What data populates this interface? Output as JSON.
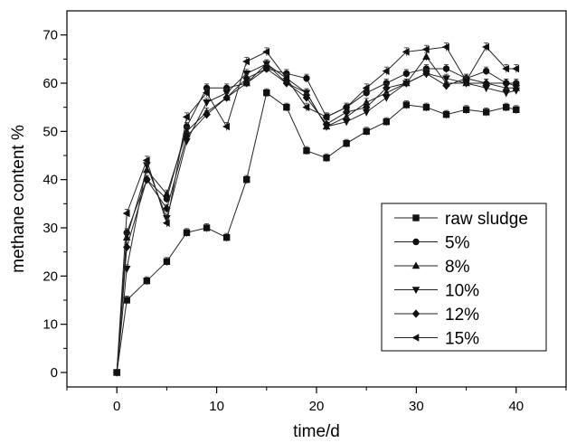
{
  "chart_data": {
    "type": "line",
    "title": "",
    "xlabel": "time/d",
    "ylabel": "methane content %",
    "xlim": [
      -5,
      45
    ],
    "ylim": [
      -3,
      75
    ],
    "xticks": [
      0,
      10,
      20,
      30,
      40
    ],
    "yticks": [
      0,
      10,
      20,
      30,
      40,
      50,
      60,
      70
    ],
    "grid": false,
    "legend_position": "right",
    "x": [
      0,
      1,
      3,
      5,
      7,
      9,
      11,
      13,
      15,
      17,
      19,
      21,
      23,
      25,
      27,
      29,
      31,
      33,
      35,
      37,
      39,
      40
    ],
    "series": [
      {
        "name": "raw sludge",
        "marker": "square",
        "values": [
          0,
          15,
          19,
          23,
          29,
          30,
          28,
          40,
          58,
          55,
          46,
          44.5,
          47.5,
          50,
          52,
          55.5,
          55,
          53.5,
          54.5,
          54,
          55,
          54.5
        ]
      },
      {
        "name": "5%",
        "marker": "circle",
        "values": [
          0,
          29,
          40,
          36,
          51,
          59,
          59,
          60,
          63,
          62,
          61,
          53,
          55,
          58,
          60,
          62,
          63,
          63,
          61,
          62.5,
          60,
          60
        ]
      },
      {
        "name": "8%",
        "marker": "triangle-up",
        "values": [
          0,
          28,
          42,
          37,
          50,
          54,
          57,
          60,
          64,
          61,
          58,
          51,
          53,
          56,
          58,
          60,
          65.5,
          60,
          60,
          60,
          59,
          59
        ]
      },
      {
        "name": "10%",
        "marker": "triangle-down",
        "values": [
          0,
          21.5,
          43,
          32,
          48,
          56,
          58,
          62,
          64,
          60,
          58,
          51,
          52,
          54,
          57,
          60,
          62,
          61,
          60,
          59,
          58,
          58.5
        ]
      },
      {
        "name": "12%",
        "marker": "diamond",
        "values": [
          0,
          26,
          40,
          34,
          49,
          53.5,
          57,
          61,
          63,
          60,
          57,
          51.5,
          54,
          55,
          59,
          60,
          62,
          59.5,
          61,
          60,
          60,
          59.5
        ]
      },
      {
        "name": "15%",
        "marker": "triangle-left",
        "values": [
          0,
          33,
          44,
          31,
          53,
          58,
          51,
          64.5,
          66.5,
          61,
          55,
          53,
          55,
          59,
          62.5,
          66.5,
          67,
          67.5,
          60.5,
          67.5,
          63,
          63
        ]
      }
    ]
  }
}
